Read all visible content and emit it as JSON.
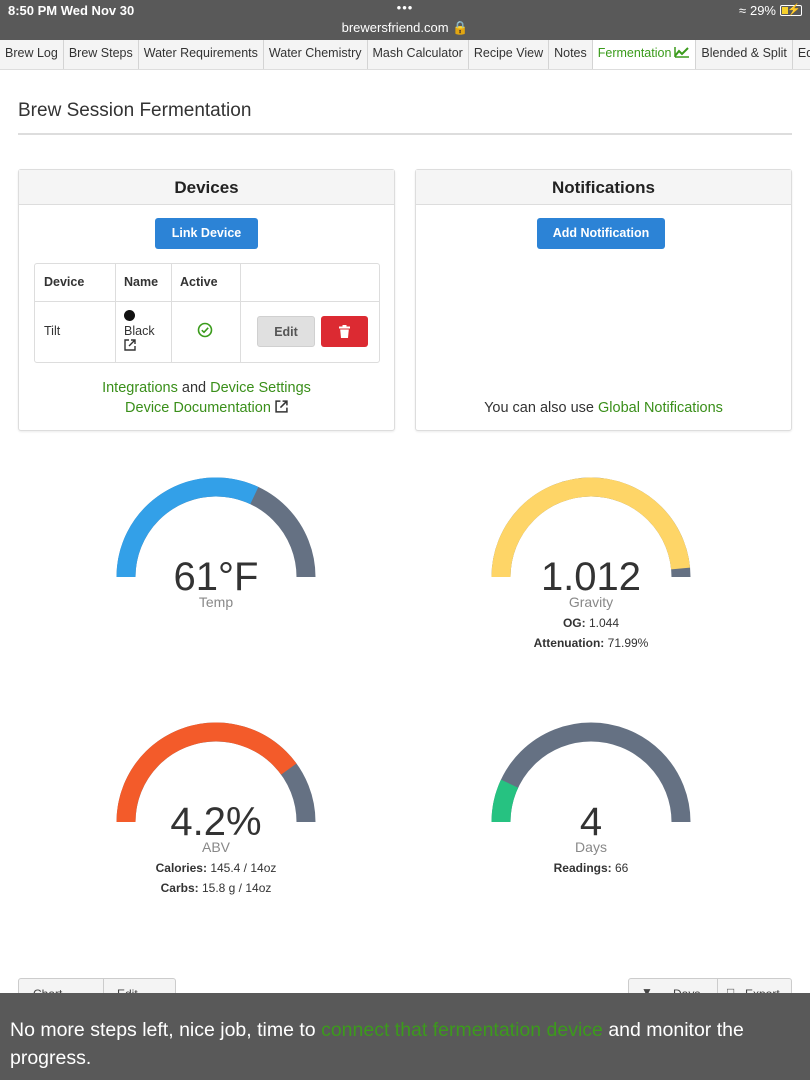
{
  "status": {
    "time": "8:50 PM  Wed Nov 30",
    "dots": "•••",
    "url": "brewersfriend.com",
    "battery": "29%",
    "battery_color": "#f5d02c"
  },
  "tabs": [
    {
      "label": "Brew Log"
    },
    {
      "label": "Brew Steps"
    },
    {
      "label": "Water Requirements"
    },
    {
      "label": "Water Chemistry"
    },
    {
      "label": "Mash Calculator"
    },
    {
      "label": "Recipe View"
    },
    {
      "label": "Notes"
    },
    {
      "label": "Fermentation",
      "active": true
    },
    {
      "label": "Blended & Split"
    },
    {
      "label": "Edit"
    }
  ],
  "page_title": "Brew Session Fermentation",
  "devices": {
    "title": "Devices",
    "link_button": "Link Device",
    "columns": [
      "Device",
      "Name",
      "Active"
    ],
    "rows": [
      {
        "device": "Tilt",
        "name": "Black",
        "active": true
      }
    ],
    "edit_button": "Edit",
    "integrations_link": "Integrations",
    "and_text": "and",
    "device_settings_link": "Device Settings",
    "documentation_link": "Device Documentation"
  },
  "notifications": {
    "title": "Notifications",
    "add_button": "Add Notification",
    "footer_text": "You can also use",
    "global_link": "Global Notifications"
  },
  "gauges": {
    "temp": {
      "value": "61°F",
      "label": "Temp",
      "fraction": 0.64,
      "color": "#33a0e8"
    },
    "gravity": {
      "value": "1.012",
      "label": "Gravity",
      "og_label": "OG:",
      "og_value": "1.044",
      "att_label": "Attenuation:",
      "att_value": "71.99%",
      "fraction": 0.97,
      "color": "#fed567"
    },
    "abv": {
      "value": "4.2%",
      "label": "ABV",
      "cal_label": "Calories:",
      "cal_value": "145.4 / 14oz",
      "carb_label": "Carbs:",
      "carb_value": "15.8 g / 14oz",
      "fraction": 0.8,
      "color": "#f35b2a"
    },
    "days": {
      "value": "4",
      "label": "Days",
      "readings_label": "Readings:",
      "readings_value": "66",
      "fraction": 0.14,
      "color": "#26c281"
    },
    "track_color": "#657183"
  },
  "bottom": {
    "chart_label": "Chart",
    "edit_label": "Edit",
    "days_label": "Days",
    "export_label": "Export"
  },
  "toast": {
    "before": "No more steps left, nice job, time to",
    "link": "connect that fermentation device",
    "after": "and monitor the progress."
  }
}
